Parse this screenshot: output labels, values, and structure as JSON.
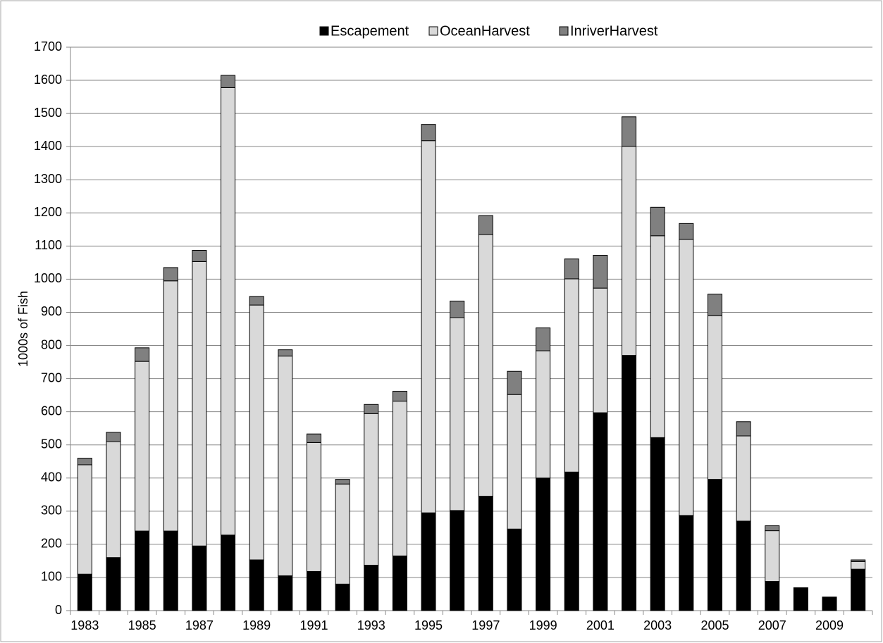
{
  "chart_data": {
    "type": "stacked-bar",
    "y_label": "1000s of Fish",
    "categories": [
      "1983",
      null,
      "1985",
      null,
      "1987",
      null,
      "1989",
      null,
      "1991",
      null,
      "1993",
      null,
      "1995",
      null,
      "1997",
      null,
      "1999",
      null,
      "2001",
      null,
      "2003",
      null,
      "2005",
      null,
      "2007",
      null,
      "2009",
      null
    ],
    "series": [
      {
        "name": "Escapement",
        "color": "#000000",
        "values": [
          110,
          160,
          240,
          240,
          195,
          228,
          153,
          105,
          118,
          80,
          137,
          165,
          295,
          302,
          345,
          246,
          400,
          418,
          597,
          770,
          522,
          287,
          396,
          270,
          88,
          69,
          41,
          125
        ]
      },
      {
        "name": "OceanHarvest",
        "color": "#d9d9d9",
        "values": [
          330,
          350,
          512,
          755,
          858,
          1350,
          769,
          663,
          389,
          302,
          457,
          467,
          1123,
          582,
          790,
          406,
          384,
          583,
          376,
          631,
          609,
          833,
          494,
          257,
          153,
          0,
          0,
          23
        ]
      },
      {
        "name": "InriverHarvest",
        "color": "#808080",
        "values": [
          20,
          28,
          41,
          40,
          34,
          37,
          26,
          19,
          26,
          14,
          28,
          30,
          49,
          50,
          57,
          70,
          69,
          60,
          99,
          89,
          86,
          48,
          65,
          43,
          15,
          0,
          0,
          5
        ]
      }
    ],
    "ylim": [
      0,
      1700
    ],
    "yticks": [
      0,
      100,
      200,
      300,
      400,
      500,
      600,
      700,
      800,
      900,
      1000,
      1100,
      1200,
      1300,
      1400,
      1500,
      1600,
      1700
    ],
    "grid": true,
    "legend": "top"
  }
}
